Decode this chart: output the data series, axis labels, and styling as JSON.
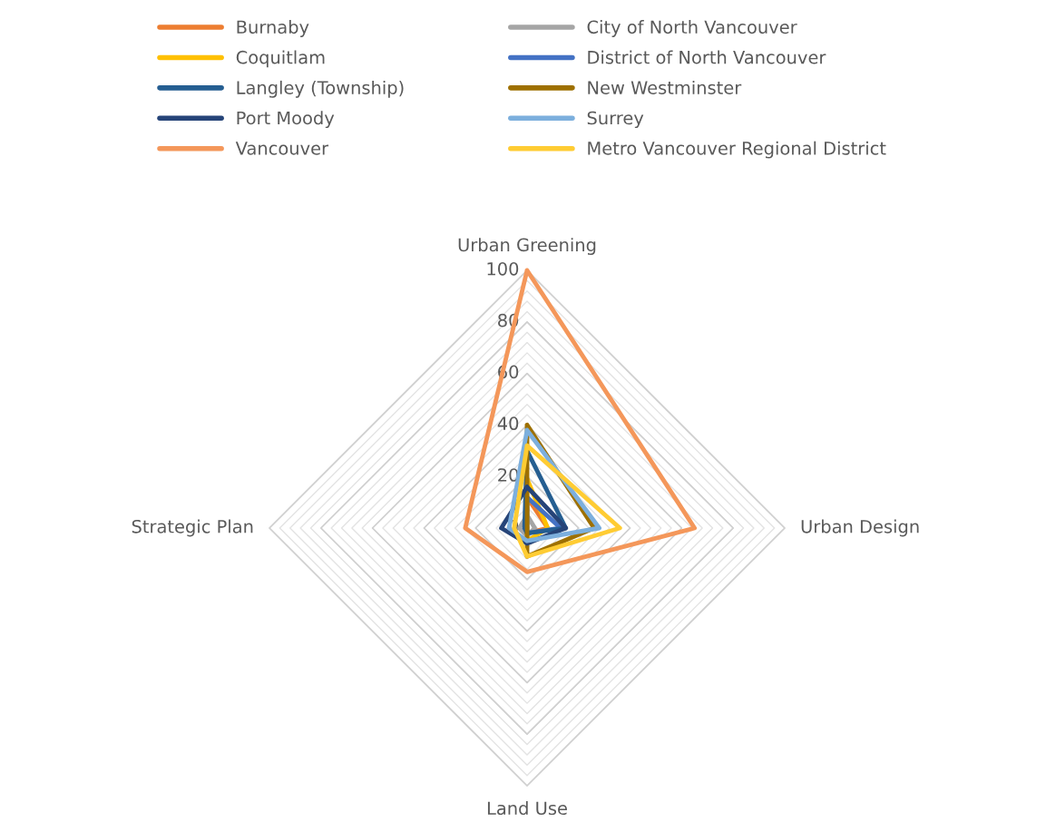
{
  "chart_data": {
    "type": "radar",
    "categories": [
      "Urban Greening",
      "Urban Design",
      "Land Use",
      "Strategic Plan"
    ],
    "ylim": [
      0,
      100
    ],
    "yticks": [
      0,
      20,
      40,
      60,
      80,
      100
    ],
    "grid": true,
    "legend": "top",
    "marker": "none",
    "line_style": "solid",
    "series": [
      {
        "name": "Burnaby",
        "color": "#ed7d31",
        "values": [
          12,
          8,
          2,
          0
        ]
      },
      {
        "name": "City of North Vancouver",
        "color": "#a5a5a5",
        "values": [
          5,
          3,
          3,
          3
        ]
      },
      {
        "name": "Coquitlam",
        "color": "#ffc000",
        "values": [
          19,
          8,
          5,
          0
        ]
      },
      {
        "name": "District of North Vancouver",
        "color": "#4472c4",
        "values": [
          12,
          13,
          2,
          0
        ]
      },
      {
        "name": "Langley (Township)",
        "color": "#255e91",
        "values": [
          30,
          15,
          2,
          1
        ]
      },
      {
        "name": "New Westminster",
        "color": "#9e7000",
        "values": [
          40,
          26,
          11,
          0
        ]
      },
      {
        "name": "Port Moody",
        "color": "#264478",
        "values": [
          16,
          15,
          6,
          10
        ]
      },
      {
        "name": "Surrey",
        "color": "#7cafdd",
        "values": [
          38,
          28,
          5,
          7
        ]
      },
      {
        "name": "Vancouver",
        "color": "#f4975a",
        "values": [
          100,
          65,
          17,
          24
        ]
      },
      {
        "name": "Metro Vancouver Regional District",
        "color": "#ffcc33",
        "values": [
          32,
          36,
          11,
          5
        ]
      }
    ]
  }
}
